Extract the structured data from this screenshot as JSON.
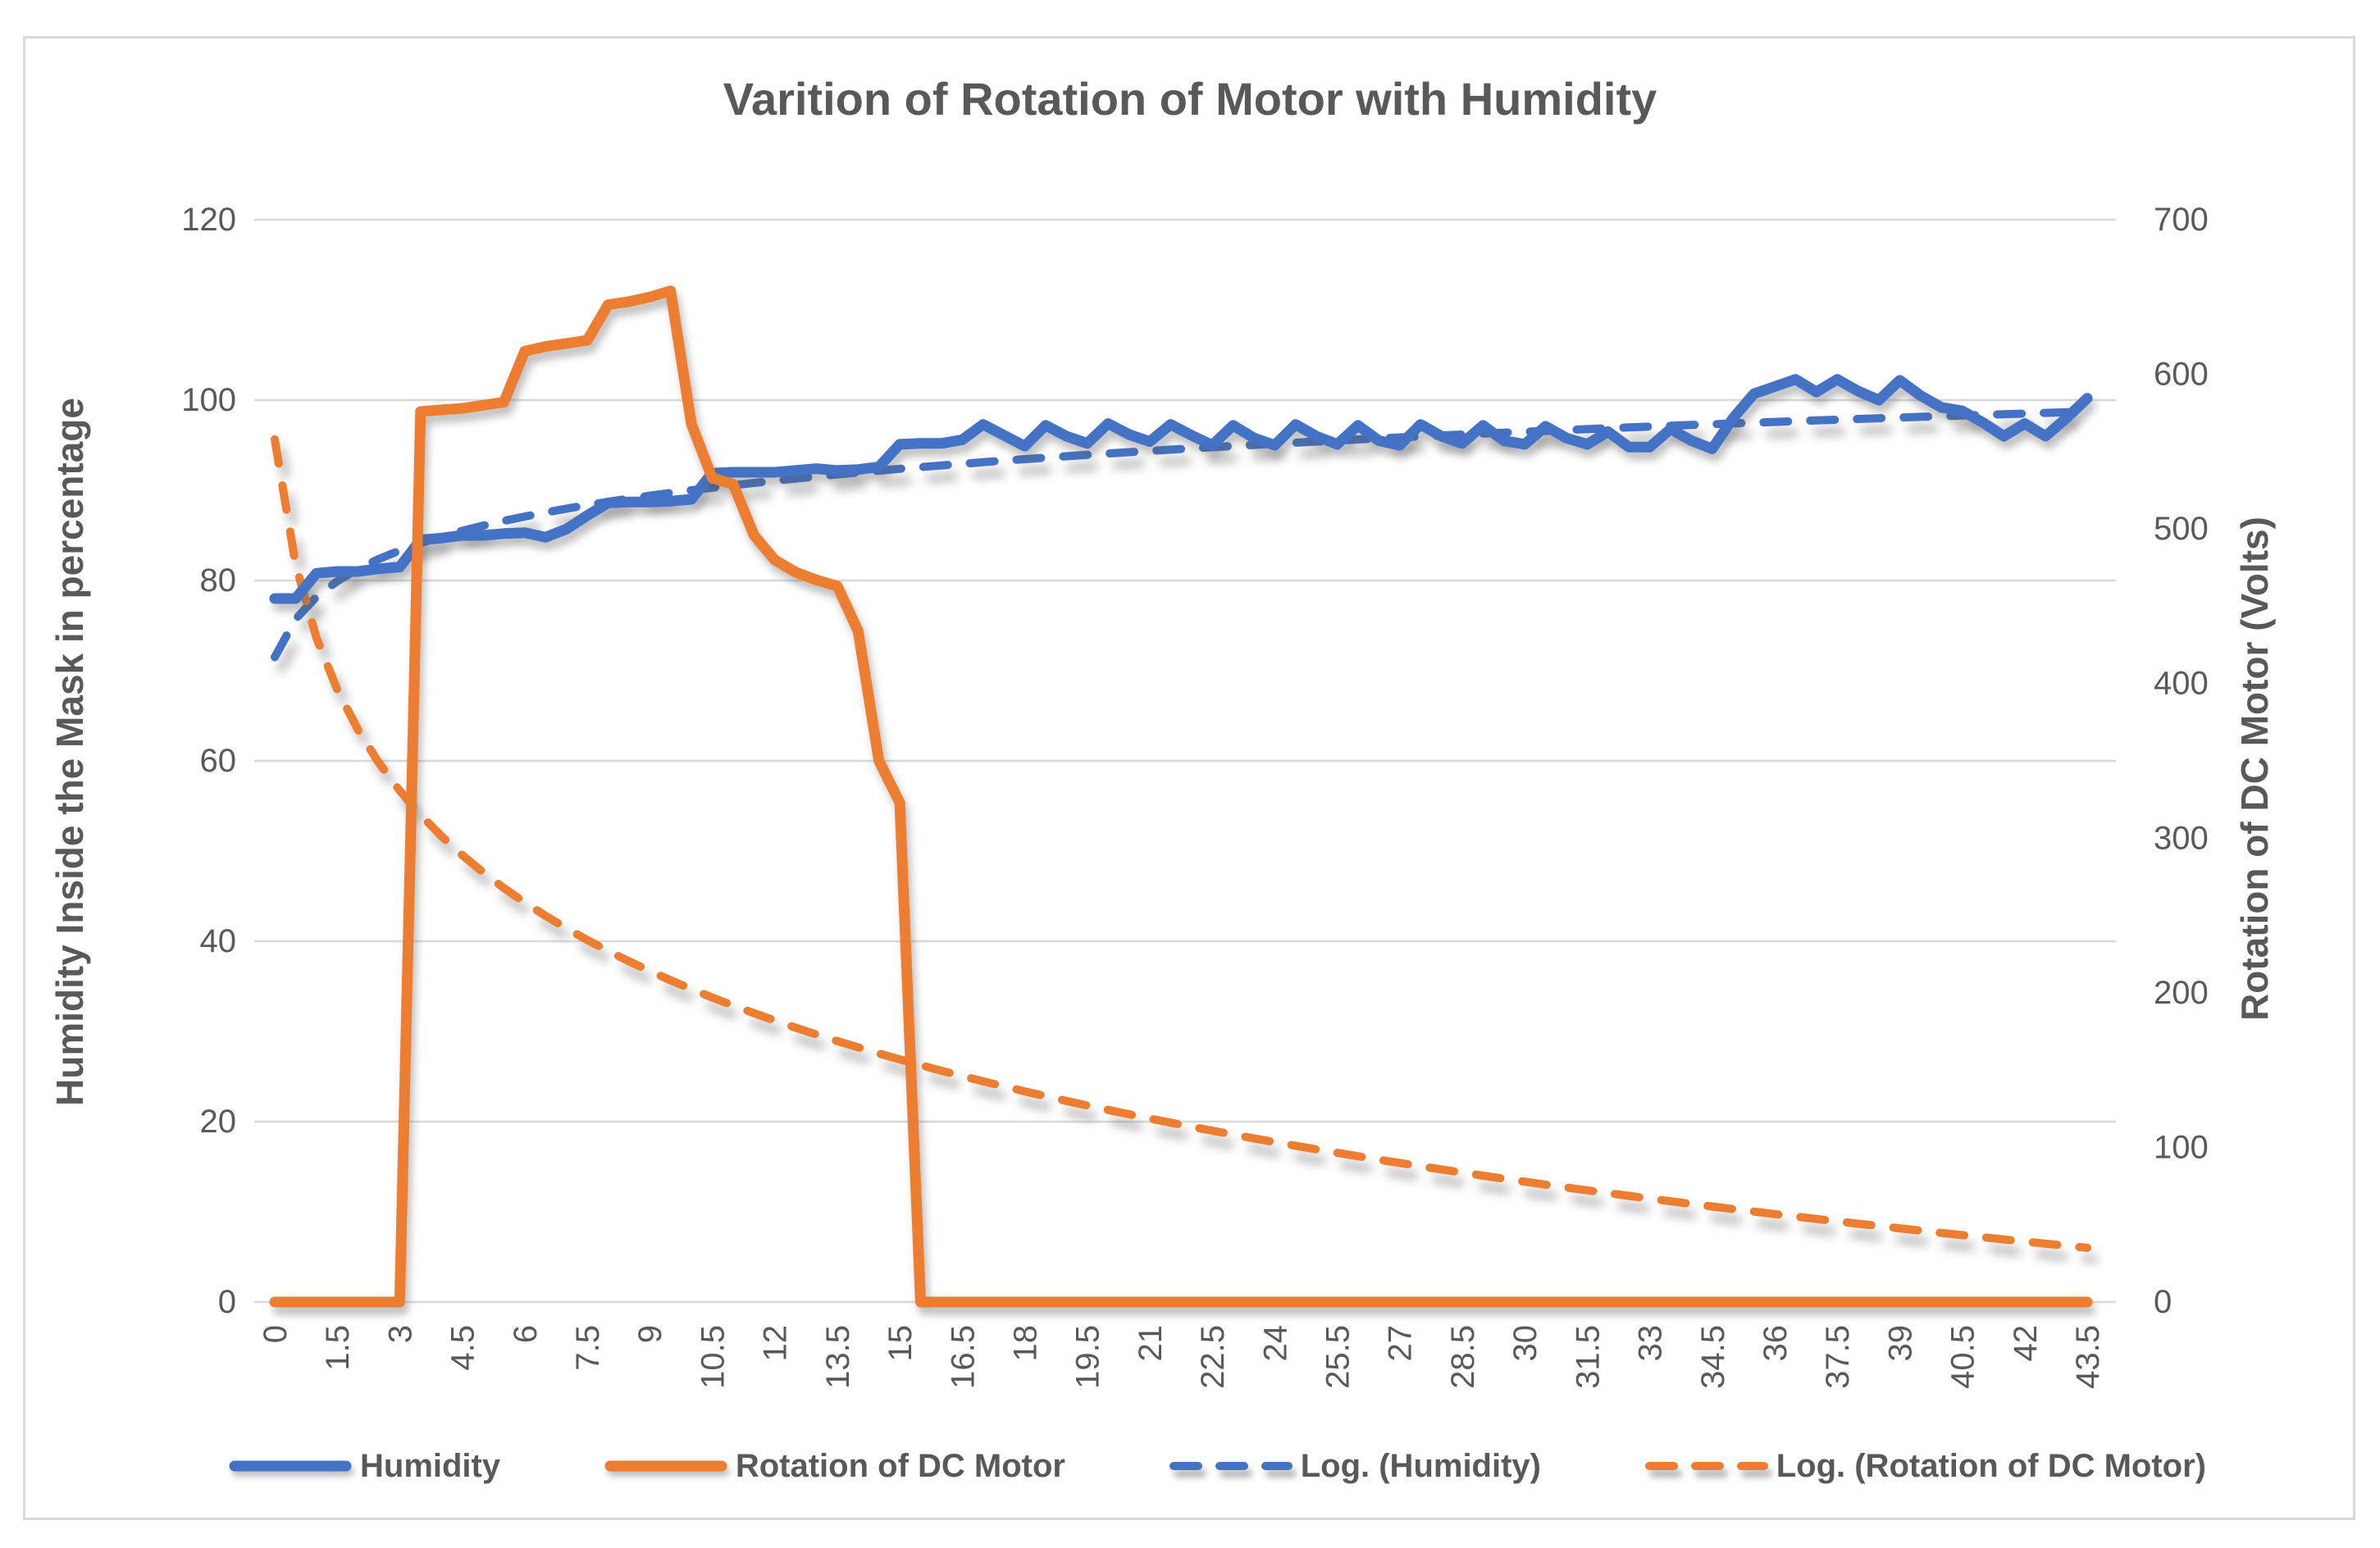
{
  "chart": {
    "title": "Varition of Rotation of Motor with Humidity",
    "left_axis": {
      "title": "Humidity Inside the Mask in percentage",
      "ticks": [
        0,
        20,
        40,
        60,
        80,
        100,
        120
      ],
      "min": 0,
      "max": 120
    },
    "right_axis": {
      "title": "Rotation of DC Motor (Volts)",
      "ticks": [
        0,
        100,
        200,
        300,
        400,
        500,
        600,
        700
      ],
      "min": 0,
      "max": 700
    },
    "x_axis": {
      "tick_labels": [
        "0",
        "1.5",
        "3",
        "4.5",
        "6",
        "7.5",
        "9",
        "10.5",
        "12",
        "13.5",
        "15",
        "16.5",
        "18",
        "19.5",
        "21",
        "22.5",
        "24",
        "25.5",
        "27",
        "28.5",
        "30",
        "31.5",
        "33",
        "34.5",
        "36",
        "37.5",
        "39",
        "40.5",
        "42",
        "43.5"
      ],
      "tick_step": 1.5
    },
    "legend": [
      {
        "label": "Humidity",
        "style": "solid",
        "color": "#4472C4"
      },
      {
        "label": "Rotation of DC Motor",
        "style": "solid",
        "color": "#ED7D31"
      },
      {
        "label": "Log. (Humidity)",
        "style": "dashed",
        "color": "#4472C4"
      },
      {
        "label": "Log. (Rotation of DC Motor)",
        "style": "dashed",
        "color": "#ED7D31"
      }
    ]
  },
  "colors": {
    "humidity": "#4472C4",
    "rotation": "#ED7D31",
    "gridline": "#D9D9D9",
    "text": "#595959"
  },
  "chart_data": {
    "type": "line",
    "grid": true,
    "legend_position": "bottom",
    "ylim_left": [
      0,
      120
    ],
    "ylim_right": [
      0,
      700
    ],
    "categories": [
      0,
      0.5,
      1,
      1.5,
      2,
      2.5,
      3,
      3.5,
      4,
      4.5,
      5,
      5.5,
      6,
      6.5,
      7,
      7.5,
      8,
      8.5,
      9,
      9.5,
      10,
      10.5,
      11,
      11.5,
      12,
      12.5,
      13,
      13.5,
      14,
      14.5,
      15,
      15.5,
      16,
      16.5,
      17,
      17.5,
      18,
      18.5,
      19,
      19.5,
      20,
      20.5,
      21,
      21.5,
      22,
      22.5,
      23,
      23.5,
      24,
      24.5,
      25,
      25.5,
      26,
      26.5,
      27,
      27.5,
      28,
      28.5,
      29,
      29.5,
      30,
      30.5,
      31,
      31.5,
      32,
      32.5,
      33,
      33.5,
      34,
      34.5,
      35,
      35.5,
      36,
      36.5,
      37,
      37.5,
      38,
      38.5,
      39,
      39.5,
      40,
      40.5,
      41,
      41.5,
      42,
      42.5,
      43,
      43.5
    ],
    "series": [
      {
        "name": "Humidity",
        "axis": "left",
        "color": "#4472C4",
        "style": "solid",
        "values": [
          78,
          78,
          80.8,
          81,
          81,
          81.3,
          81.5,
          84.5,
          84.7,
          85,
          85,
          85.2,
          85.3,
          84.8,
          85.7,
          87.2,
          88.6,
          88.7,
          88.7,
          88.8,
          89,
          91.9,
          92,
          92,
          92,
          92.2,
          92.4,
          92.2,
          92.3,
          92.6,
          95.1,
          95.2,
          95.2,
          95.6,
          97.3,
          96.1,
          94.9,
          97.2,
          96,
          95.2,
          97.4,
          96.2,
          95.4,
          97.3,
          96.1,
          95,
          97.2,
          95.8,
          95,
          97.3,
          96,
          95.1,
          97.2,
          95.5,
          95,
          97.3,
          96,
          95.2,
          97.2,
          95.5,
          95.1,
          97.1,
          95.8,
          95.1,
          96.5,
          94.8,
          94.8,
          96.8,
          95.5,
          94.6,
          98,
          100.7,
          101.5,
          102.3,
          100.9,
          102.3,
          101,
          100,
          102.2,
          100.5,
          99.2,
          98.8,
          97.5,
          96,
          97.4,
          96,
          98,
          100.2
        ]
      },
      {
        "name": "Rotation of DC Motor",
        "axis": "right",
        "color": "#ED7D31",
        "style": "solid",
        "values": [
          0,
          0,
          0,
          0,
          0,
          0,
          0,
          576,
          577,
          578,
          580,
          582,
          615,
          618,
          620,
          622,
          645,
          647,
          650,
          654,
          568,
          533,
          529,
          496,
          480,
          472,
          467,
          463,
          434,
          350,
          323,
          0,
          0,
          0,
          0,
          0,
          0,
          0,
          0,
          0,
          0,
          0,
          0,
          0,
          0,
          0,
          0,
          0,
          0,
          0,
          0,
          0,
          0,
          0,
          0,
          0,
          0,
          0,
          0,
          0,
          0,
          0,
          0,
          0,
          0,
          0,
          0,
          0,
          0,
          0,
          0,
          0,
          0,
          0,
          0,
          0,
          0,
          0,
          0,
          0,
          0,
          0,
          0,
          0,
          0,
          0,
          0,
          0
        ]
      }
    ],
    "trendlines": [
      {
        "name": "Log. (Humidity)",
        "axis": "left",
        "color": "#4472C4",
        "style": "dashed",
        "formula": "a + b*ln(i), i = point index 1..88",
        "a": 71.5,
        "b": 6.08
      },
      {
        "name": "Log. (Rotation of DC Motor)",
        "axis": "right",
        "color": "#ED7D31",
        "style": "dashed",
        "formula": "a + b*ln(i), i = point index 1..88",
        "a": 558,
        "b": -116.8
      }
    ]
  }
}
